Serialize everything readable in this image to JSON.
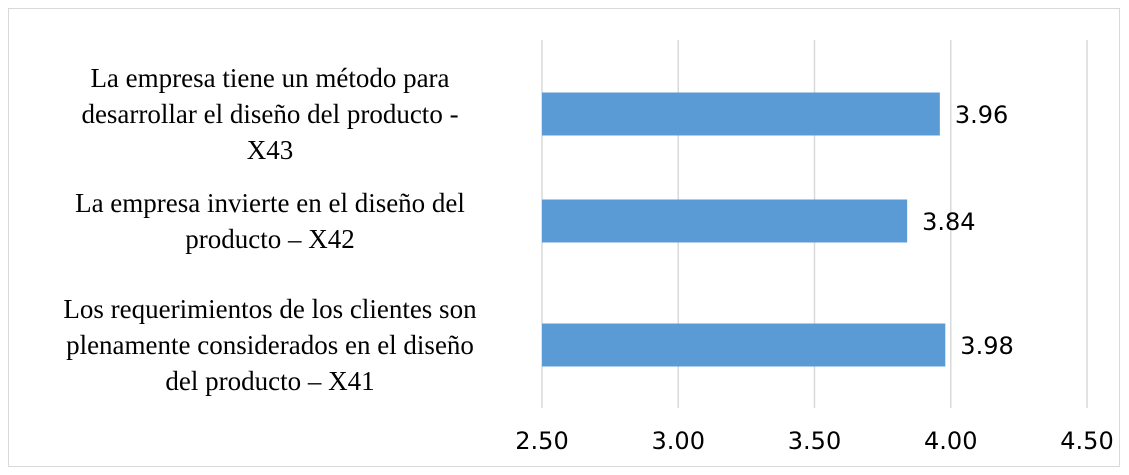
{
  "chart_data": {
    "type": "bar",
    "orientation": "horizontal",
    "categories": [
      [
        "La empresa tiene un método para",
        "desarrollar el diseño del producto -",
        "X43"
      ],
      [
        "La empresa invierte en el diseño del",
        "producto – X42"
      ],
      [
        "Los requerimientos de los clientes son",
        "plenamente considerados en el diseño",
        "del producto – X41"
      ]
    ],
    "values": [
      3.96,
      3.84,
      3.98
    ],
    "data_labels": [
      "3.96",
      "3.84",
      "3.98"
    ],
    "xlim": [
      2.5,
      4.5
    ],
    "xticks": [
      2.5,
      3.0,
      3.5,
      4.0,
      4.5
    ],
    "xtick_labels": [
      "2.50",
      "3.00",
      "3.50",
      "4.00",
      "4.50"
    ],
    "grid": "vertical",
    "legend": "none",
    "bar_color": "#5b9bd5",
    "grid_color": "#d9d9d9"
  }
}
